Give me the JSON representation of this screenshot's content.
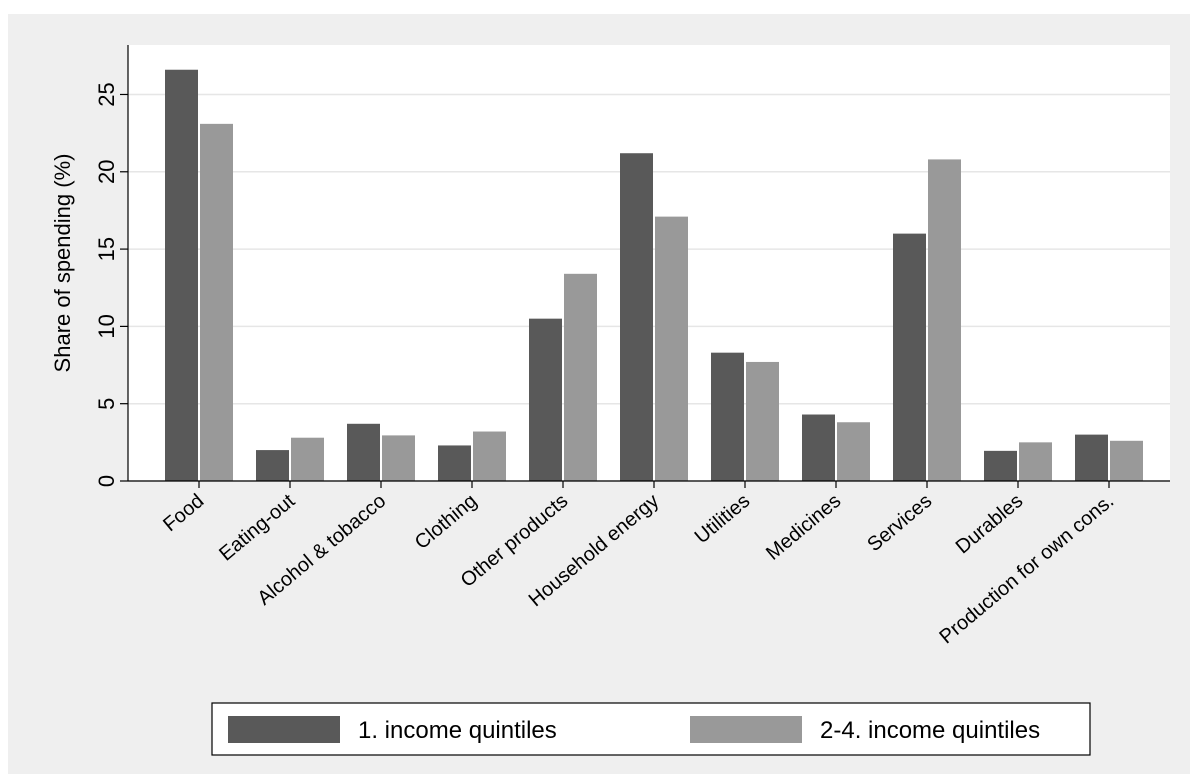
{
  "chart_data": {
    "type": "bar",
    "y_label": "Share of spending (%)",
    "categories": [
      "Food",
      "Eating-out",
      "Alcohol & tobacco",
      "Clothing",
      "Other products",
      "Household energy",
      "Utilities",
      "Medicines",
      "Services",
      "Durables",
      "Production for own cons."
    ],
    "series": [
      {
        "name": "1. income quintiles",
        "color": "#595959",
        "values": [
          26.6,
          2.0,
          3.7,
          2.3,
          10.5,
          21.2,
          8.3,
          4.3,
          16.0,
          1.95,
          3.0
        ]
      },
      {
        "name": "2-4. income quintiles",
        "color": "#999999",
        "values": [
          23.1,
          2.8,
          2.95,
          3.2,
          13.4,
          17.1,
          7.7,
          3.8,
          20.8,
          2.5,
          2.6
        ]
      }
    ],
    "ylim": [
      0,
      28.2
    ],
    "yticks": [
      0,
      5,
      10,
      15,
      20,
      25
    ],
    "grid": true,
    "legend": "bottom"
  }
}
